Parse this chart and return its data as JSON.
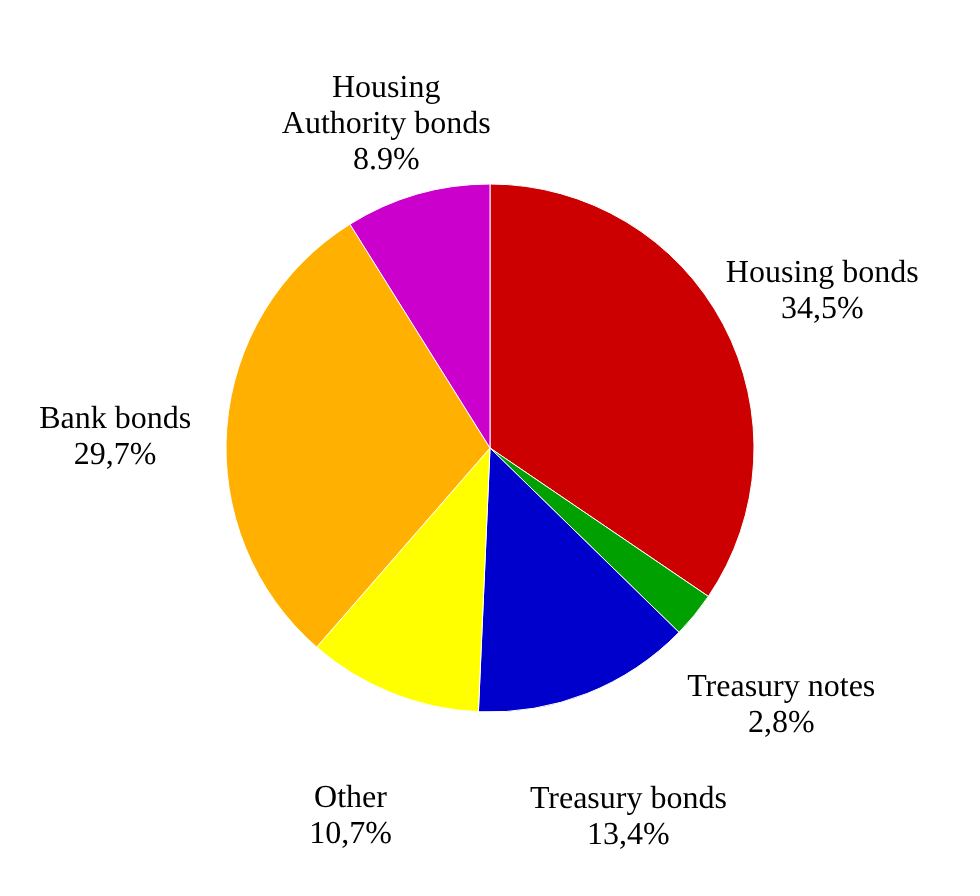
{
  "chart_data": {
    "type": "pie",
    "categories": [
      "Housing bonds",
      "Treasury notes",
      "Treasury bonds",
      "Other",
      "Bank bonds",
      "Housing Authority bonds"
    ],
    "values": [
      34.5,
      2.8,
      13.4,
      10.7,
      29.7,
      8.9
    ],
    "colors": [
      "#cc0000",
      "#00a000",
      "#0000cc",
      "#ffff00",
      "#ffb000",
      "#cc00cc"
    ],
    "value_labels": [
      "34,5%",
      "2,8%",
      "13,4%",
      "10,7%",
      "29,7%",
      "8.9%"
    ]
  }
}
